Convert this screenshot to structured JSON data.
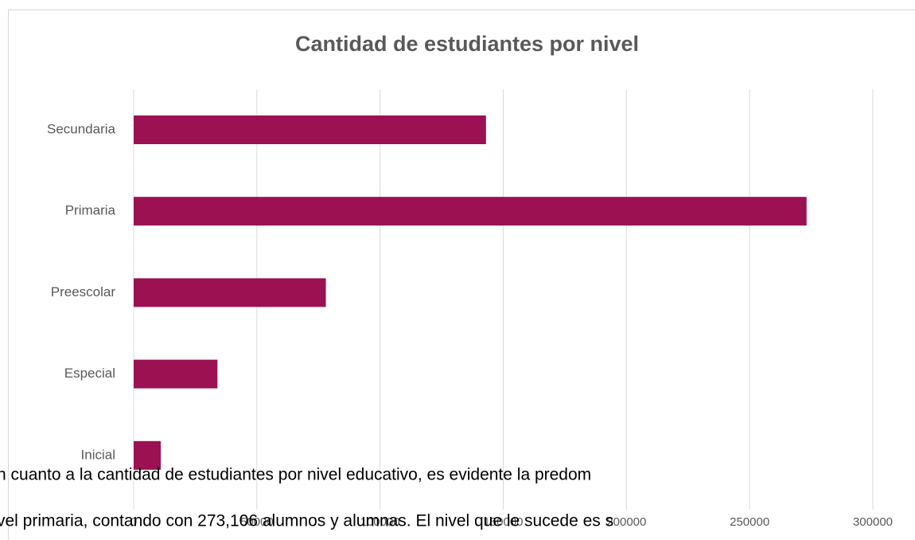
{
  "chart_data": {
    "type": "bar",
    "orientation": "horizontal",
    "title": "Cantidad de estudiantes por nivel",
    "categories": [
      "Secundaria",
      "Primaria",
      "Preescolar",
      "Especial",
      "Inicial"
    ],
    "values": [
      143000,
      273106,
      78000,
      34000,
      11000
    ],
    "color": "#9b1152",
    "xlim": [
      0,
      300000
    ],
    "xticks": [
      0,
      50000,
      100000,
      150000,
      200000,
      250000,
      300000
    ],
    "grid": true
  },
  "document": {
    "lines": [
      "n cuanto a la cantidad de estudiantes por nivel educativo, es evidente la predom",
      "vel primaria, contando con 273,106 alumnos y alumnas. El nivel que le sucede es s"
    ]
  }
}
